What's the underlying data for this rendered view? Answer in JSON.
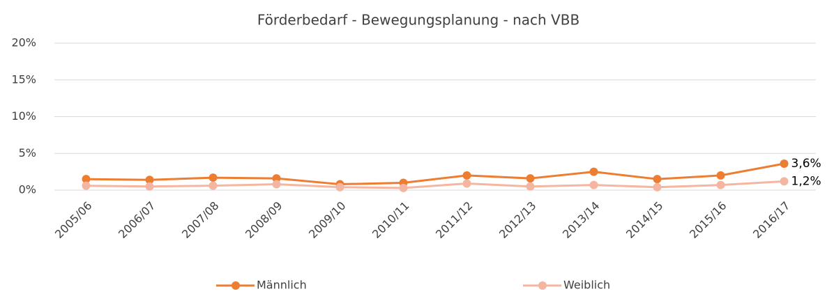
{
  "chart_data": {
    "type": "line",
    "title": "Förderbedarf - Bewegungsplanung - nach VBB",
    "categories": [
      "2005/06",
      "2006/07",
      "2007/08",
      "2008/09",
      "2009/10",
      "2010/11",
      "2011/12",
      "2012/13",
      "2013/14",
      "2014/15",
      "2015/16",
      "2016/17"
    ],
    "series": [
      {
        "name": "Männlich",
        "color": "#ed7d31",
        "values": [
          1.5,
          1.4,
          1.7,
          1.6,
          0.8,
          1.0,
          2.0,
          1.6,
          2.5,
          1.5,
          2.0,
          3.6
        ],
        "value_labels": [
          null,
          null,
          null,
          null,
          null,
          null,
          null,
          null,
          null,
          null,
          null,
          "3,6%"
        ]
      },
      {
        "name": "Weiblich",
        "color": "#f4b6a0",
        "values": [
          0.6,
          0.5,
          0.6,
          0.8,
          0.4,
          0.3,
          0.9,
          0.5,
          0.7,
          0.4,
          0.7,
          1.2
        ],
        "value_labels": [
          null,
          null,
          null,
          null,
          null,
          null,
          null,
          null,
          null,
          null,
          null,
          "1,2%"
        ]
      }
    ],
    "ylim": [
      0,
      20
    ],
    "yticks": [
      {
        "value": 0,
        "label": "0%"
      },
      {
        "value": 5,
        "label": "5%"
      },
      {
        "value": 10,
        "label": "10%"
      },
      {
        "value": 15,
        "label": "15%"
      },
      {
        "value": 20,
        "label": "20%"
      }
    ],
    "grid": true,
    "legend": "bottom"
  }
}
